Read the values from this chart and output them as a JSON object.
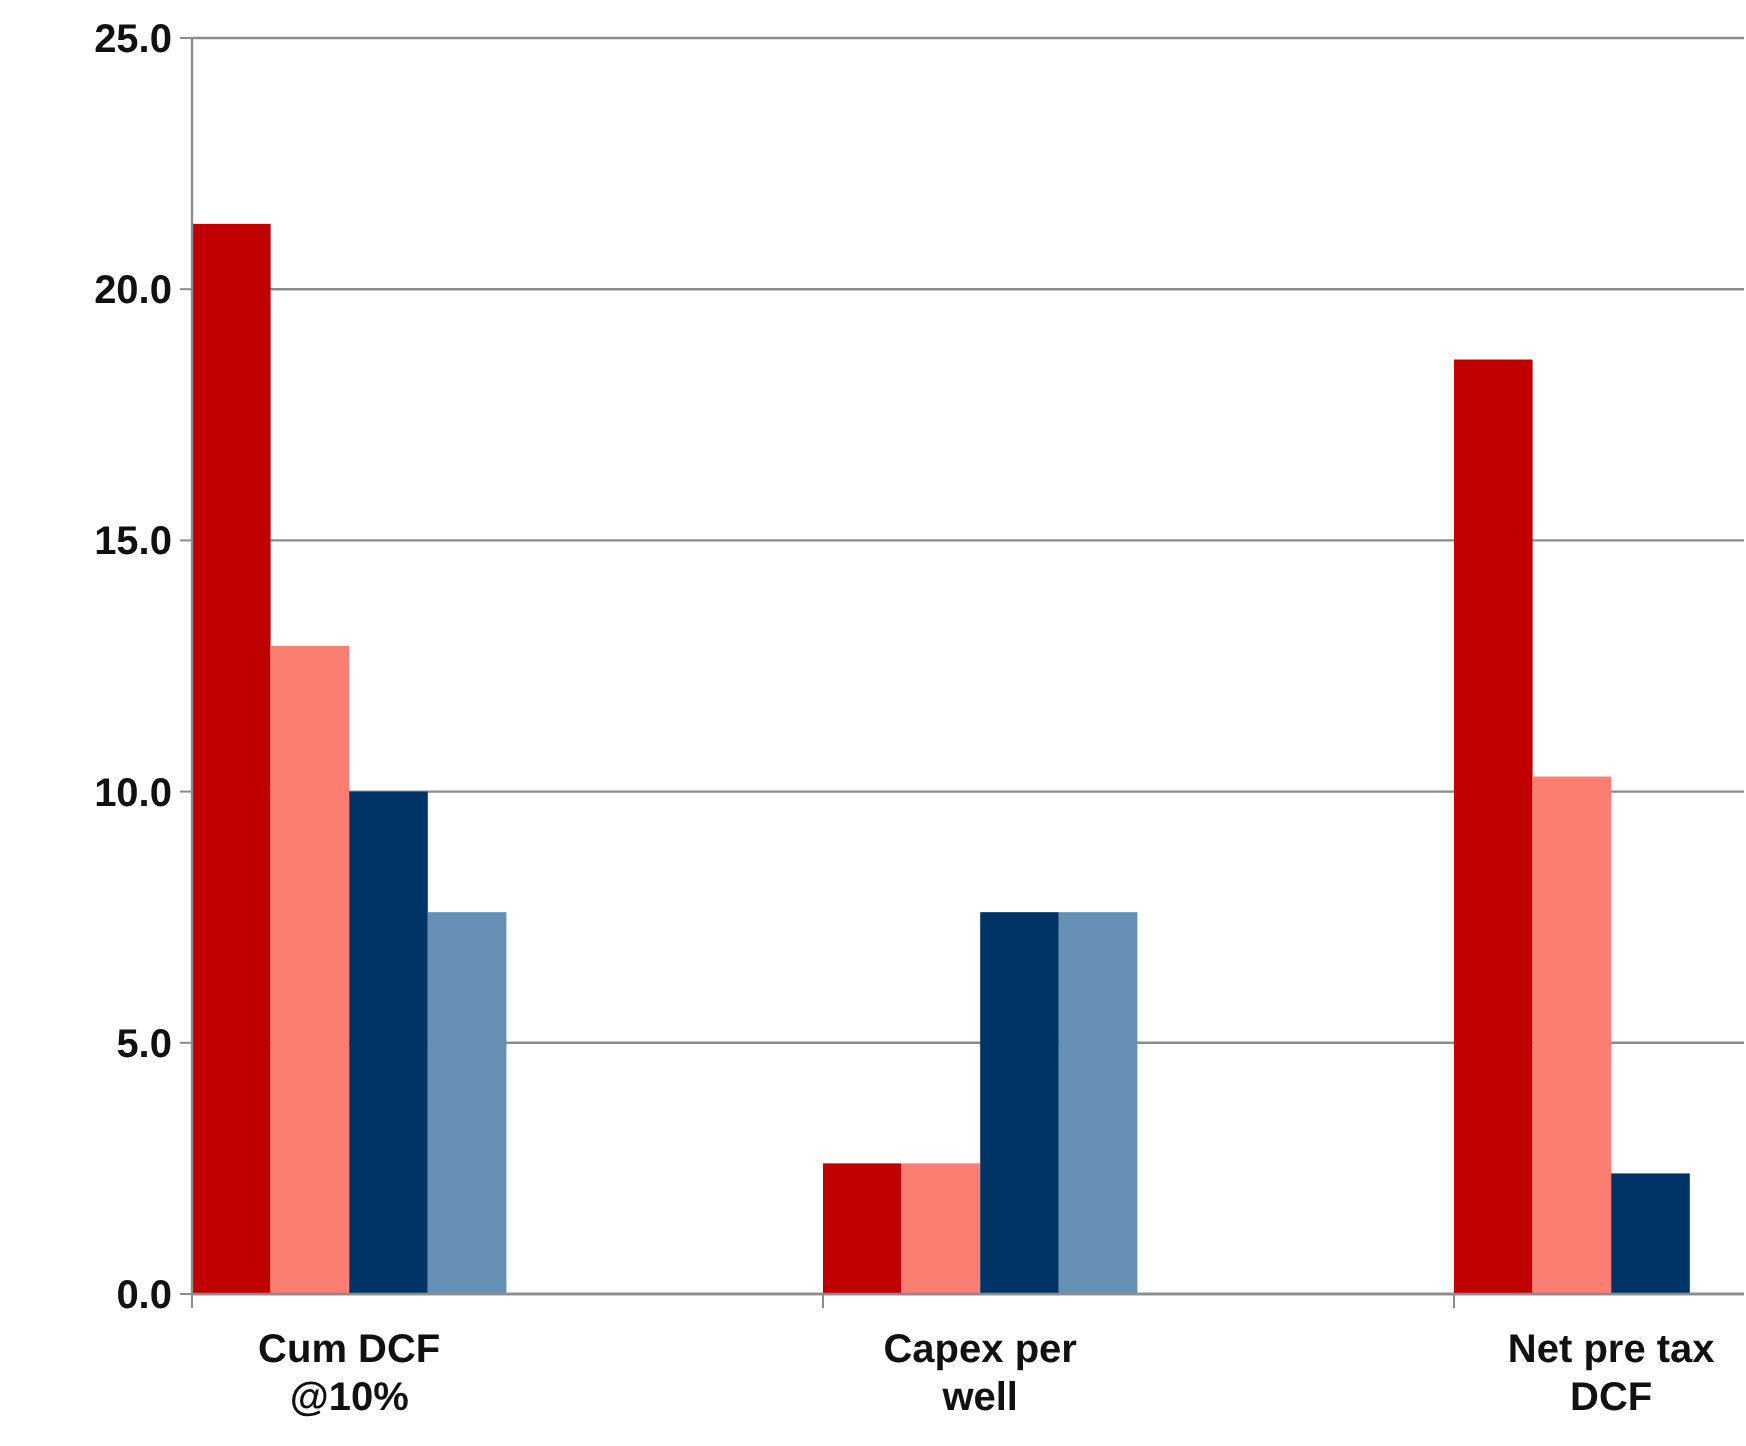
{
  "chart_data": {
    "type": "bar",
    "categories": [
      "Cum DCF @10%",
      "Capex per well",
      "Net pre tax DCF"
    ],
    "series": [
      {
        "color": "#c00000",
        "values": [
          21.3,
          2.6,
          18.6
        ]
      },
      {
        "color": "#fa7e72",
        "values": [
          12.9,
          2.6,
          10.3
        ]
      },
      {
        "color": "#003366",
        "values": [
          10.0,
          7.6,
          2.4
        ]
      },
      {
        "color": "#6690b3",
        "values": [
          7.6,
          7.6,
          null
        ]
      }
    ],
    "ylim": [
      0,
      25
    ],
    "yticks": [
      {
        "value": 0,
        "label": "0.0"
      },
      {
        "value": 5,
        "label": "5.0"
      },
      {
        "value": 10,
        "label": "10.0"
      },
      {
        "value": 15,
        "label": "15.0"
      },
      {
        "value": 20,
        "label": "20.0"
      },
      {
        "value": 25,
        "label": "25.0"
      }
    ],
    "grid": "y"
  }
}
